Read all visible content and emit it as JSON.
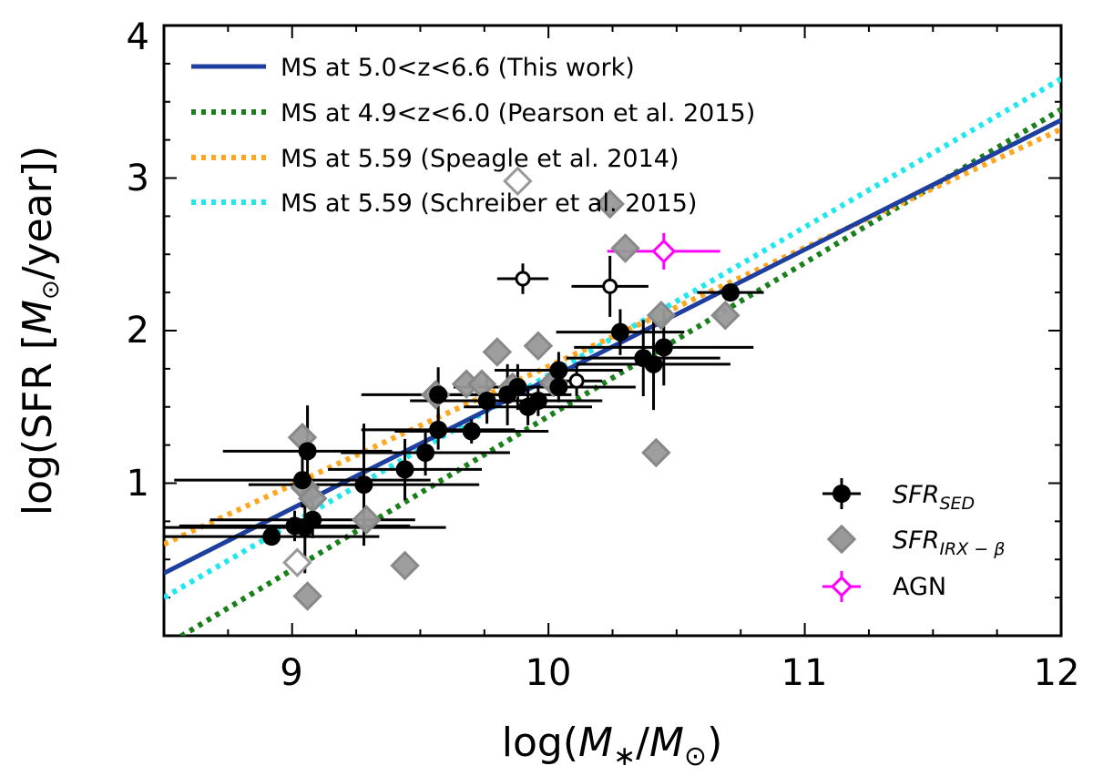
{
  "chart_data": {
    "type": "scatter",
    "title": "",
    "xlabel": "log(M∗/M⊙)",
    "ylabel": "log(SFR [M⊙/year])",
    "xlim": [
      8.5,
      12
    ],
    "ylim": [
      0,
      4
    ],
    "xticks": [
      {
        "value": 9,
        "label": "9"
      },
      {
        "value": 10,
        "label": "10"
      },
      {
        "value": 11,
        "label": "11"
      },
      {
        "value": 12,
        "label": "12"
      }
    ],
    "yticks": [
      {
        "value": 1,
        "label": "1"
      },
      {
        "value": 2,
        "label": "2"
      },
      {
        "value": 3,
        "label": "3"
      },
      {
        "value": 4,
        "label": "4"
      }
    ],
    "xlabel_parts": {
      "pre": "log(",
      "m1": "M",
      "sub1": "∗",
      "slash": "/",
      "m2": "M",
      "sub2": "⊙",
      "post": ")"
    },
    "ylabel_parts": {
      "pre": "log(SFR [",
      "m": "M",
      "sub": "⊙",
      "post": "/year])"
    },
    "colors": {
      "this_work": "#1f3f9f",
      "pearson": "#1a7f1a",
      "speagle": "#ffa61f",
      "schreiber": "#22e6ee",
      "sed": "#000000",
      "irx": "#999999",
      "agn": "#ff00ff"
    },
    "lines": [
      {
        "name": "MS at 5.0<z<6.6 (This work)",
        "style": "solid",
        "color_key": "this_work",
        "x": [
          8.5,
          12
        ],
        "y": [
          0.41,
          3.38
        ]
      },
      {
        "name": "MS at 4.9<z<6.0 (Pearson et al. 2015)",
        "style": "dotted",
        "color_key": "pearson",
        "x": [
          8.5,
          12
        ],
        "y": [
          -0.07,
          3.45
        ]
      },
      {
        "name": "MS at 5.59 (Speagle et al. 2014)",
        "style": "dotted",
        "color_key": "speagle",
        "x": [
          8.5,
          12
        ],
        "y": [
          0.6,
          3.32
        ]
      },
      {
        "name": "MS at 5.59 (Schreiber et al. 2015)",
        "style": "dotted",
        "color_key": "schreiber",
        "x": [
          8.5,
          12
        ],
        "y": [
          0.25,
          3.65
        ]
      }
    ],
    "points_sed": [
      {
        "x": 8.92,
        "y": 0.65,
        "xerr": [
          0.42,
          0.42
        ],
        "yerr": [
          0.05,
          0.05
        ]
      },
      {
        "x": 9.01,
        "y": 0.72,
        "xerr": [
          0.45,
          0.45
        ],
        "yerr": [
          0.1,
          0.1
        ]
      },
      {
        "x": 9.04,
        "y": 1.02,
        "xerr": [
          0.5,
          0.5
        ],
        "yerr": [
          0.18,
          0.18
        ]
      },
      {
        "x": 9.06,
        "y": 1.21,
        "xerr": [
          0.33,
          0.33
        ],
        "yerr": [
          0.3,
          0.3
        ]
      },
      {
        "x": 9.05,
        "y": 0.71,
        "xerr": [
          0.55,
          0.55
        ],
        "yerr": [
          0.3,
          0.3
        ]
      },
      {
        "x": 9.08,
        "y": 0.76,
        "xerr": [
          0.4,
          0.4
        ],
        "yerr": [
          0.12,
          0.12
        ]
      },
      {
        "x": 9.28,
        "y": 0.99,
        "xerr": [
          0.45,
          0.45
        ],
        "yerr": [
          0.4,
          0.4
        ]
      },
      {
        "x": 9.44,
        "y": 1.09,
        "xerr": [
          0.3,
          0.3
        ],
        "yerr": [
          0.2,
          0.2
        ]
      },
      {
        "x": 9.52,
        "y": 1.2,
        "xerr": [
          0.33,
          0.33
        ],
        "yerr": [
          0.15,
          0.15
        ]
      },
      {
        "x": 9.57,
        "y": 1.35,
        "xerr": [
          0.3,
          0.3
        ],
        "yerr": [
          0.13,
          0.13
        ]
      },
      {
        "x": 9.57,
        "y": 1.58,
        "xerr": [
          0.3,
          0.3
        ],
        "yerr": [
          0.18,
          0.18
        ]
      },
      {
        "x": 9.7,
        "y": 1.34,
        "xerr": [
          0.3,
          0.3
        ],
        "yerr": [
          0.08,
          0.08
        ]
      },
      {
        "x": 9.76,
        "y": 1.54,
        "xerr": [
          0.3,
          0.3
        ],
        "yerr": [
          0.15,
          0.15
        ]
      },
      {
        "x": 9.84,
        "y": 1.58,
        "xerr": [
          0.25,
          0.25
        ],
        "yerr": [
          0.2,
          0.2
        ]
      },
      {
        "x": 9.88,
        "y": 1.63,
        "xerr": [
          0.25,
          0.25
        ],
        "yerr": [
          0.15,
          0.15
        ]
      },
      {
        "x": 9.92,
        "y": 1.5,
        "xerr": [
          0.25,
          0.25
        ],
        "yerr": [
          0.12,
          0.12
        ]
      },
      {
        "x": 9.96,
        "y": 1.54,
        "xerr": [
          0.25,
          0.25
        ],
        "yerr": [
          0.1,
          0.1
        ]
      },
      {
        "x": 10.04,
        "y": 1.74,
        "xerr": [
          0.25,
          0.25
        ],
        "yerr": [
          0.12,
          0.12
        ]
      },
      {
        "x": 10.04,
        "y": 1.63,
        "xerr": [
          0.3,
          0.3
        ],
        "yerr": [
          0.1,
          0.1
        ]
      },
      {
        "x": 10.28,
        "y": 1.99,
        "xerr": [
          0.25,
          0.25
        ],
        "yerr": [
          0.15,
          0.15
        ]
      },
      {
        "x": 10.37,
        "y": 1.82,
        "xerr": [
          0.3,
          0.3
        ],
        "yerr": [
          0.25,
          0.25
        ]
      },
      {
        "x": 10.41,
        "y": 1.78,
        "xerr": [
          0.3,
          0.3
        ],
        "yerr": [
          0.3,
          0.3
        ]
      },
      {
        "x": 10.45,
        "y": 1.89,
        "xerr": [
          0.35,
          0.35
        ],
        "yerr": [
          0.25,
          0.25
        ]
      },
      {
        "x": 10.71,
        "y": 2.25,
        "xerr": [
          0.13,
          0.13
        ],
        "yerr": [
          0.04,
          0.04
        ]
      }
    ],
    "points_sed_open": [
      {
        "x": 9.9,
        "y": 2.34,
        "xerr": [
          0.1,
          0.1
        ],
        "yerr": [
          0.1,
          0.1
        ]
      },
      {
        "x": 10.24,
        "y": 2.29,
        "xerr": [
          0.15,
          0.15
        ],
        "yerr": [
          0.2,
          0.2
        ]
      },
      {
        "x": 10.11,
        "y": 1.67,
        "xerr": [
          0.1,
          0.1
        ],
        "yerr": [
          0.1,
          0.1
        ]
      }
    ],
    "points_irx": [
      {
        "x": 9.04,
        "y": 1.3
      },
      {
        "x": 9.05,
        "y": 0.97
      },
      {
        "x": 9.06,
        "y": 0.26
      },
      {
        "x": 9.08,
        "y": 0.9
      },
      {
        "x": 9.29,
        "y": 0.76
      },
      {
        "x": 9.44,
        "y": 0.46
      },
      {
        "x": 9.56,
        "y": 1.58
      },
      {
        "x": 9.68,
        "y": 1.65
      },
      {
        "x": 9.74,
        "y": 1.65
      },
      {
        "x": 9.8,
        "y": 1.86
      },
      {
        "x": 9.86,
        "y": 1.63
      },
      {
        "x": 9.96,
        "y": 1.9
      },
      {
        "x": 10.02,
        "y": 1.66
      },
      {
        "x": 10.24,
        "y": 2.83
      },
      {
        "x": 10.3,
        "y": 2.54
      },
      {
        "x": 10.44,
        "y": 2.1
      },
      {
        "x": 10.69,
        "y": 2.1
      },
      {
        "x": 10.42,
        "y": 1.2
      }
    ],
    "points_irx_open": [
      {
        "x": 9.88,
        "y": 2.98
      },
      {
        "x": 9.02,
        "y": 0.48
      }
    ],
    "points_agn": [
      {
        "x": 10.45,
        "y": 2.52,
        "xerr": [
          0.22,
          0.22
        ],
        "yerr": [
          0.12,
          0.12
        ]
      }
    ],
    "legend": {
      "placement": "top-left",
      "entries": [
        {
          "label": "MS at 5.0<z<6.6 (This work)"
        },
        {
          "label": "MS at 4.9<z<6.0 (Pearson et al. 2015)"
        },
        {
          "label": "MS at 5.59 (Speagle et al. 2014)"
        },
        {
          "label": "MS at 5.59 (Schreiber et al. 2015)"
        }
      ]
    },
    "legend2": {
      "placement": "bottom-right",
      "sed": {
        "main": "SFR",
        "sub": "SED"
      },
      "irx": {
        "main": "SFR",
        "sub": "IRX − β"
      },
      "agn": "AGN"
    }
  }
}
